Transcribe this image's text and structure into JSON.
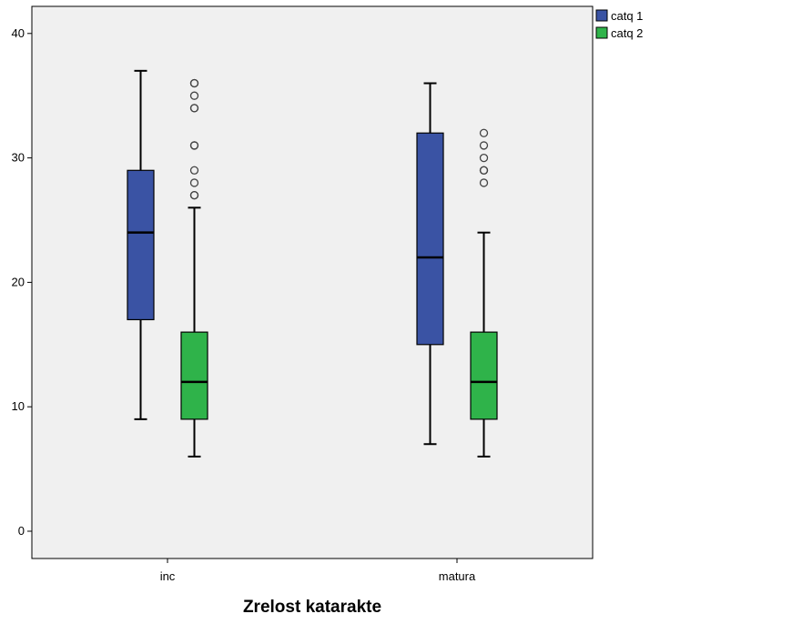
{
  "chart_data": {
    "type": "boxplot",
    "title": "",
    "xlabel": "Zrelost katarakte",
    "ylabel": "",
    "ylim": [
      0,
      40
    ],
    "yticks": [
      0,
      10,
      20,
      30,
      40
    ],
    "categories": [
      "inc",
      "matura"
    ],
    "grid": false,
    "legend": "top-right outside",
    "series": [
      {
        "name": "catq 1",
        "color": "#3a53a4",
        "boxes": [
          {
            "category": "inc",
            "min": 9,
            "q1": 17,
            "median": 24,
            "q3": 29,
            "max": 37,
            "outliers": []
          },
          {
            "category": "matura",
            "min": 7,
            "q1": 15,
            "median": 22,
            "q3": 32,
            "max": 36,
            "outliers": []
          }
        ]
      },
      {
        "name": "catq 2",
        "color": "#2fb34a",
        "boxes": [
          {
            "category": "inc",
            "min": 6,
            "q1": 9,
            "median": 12,
            "q3": 16,
            "max": 26,
            "outliers": [
              27,
              27,
              28,
              29,
              31,
              31,
              34,
              34,
              35,
              36,
              36
            ]
          },
          {
            "category": "matura",
            "min": 6,
            "q1": 9,
            "median": 12,
            "q3": 16,
            "max": 24,
            "outliers": [
              28,
              29,
              29,
              30,
              31,
              32
            ]
          }
        ]
      }
    ]
  }
}
